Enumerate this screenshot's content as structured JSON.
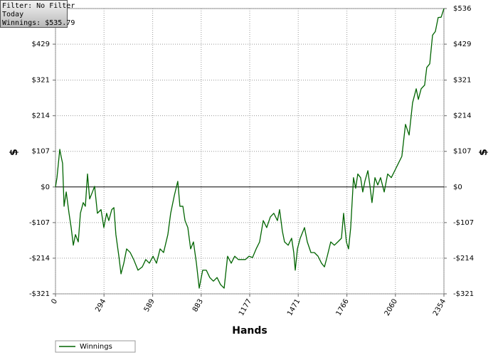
{
  "chart_data": {
    "type": "line",
    "info": [
      "Filter: No Filter",
      "Today",
      "Winnings: $535.79"
    ],
    "x_label": "Hands",
    "y_label": "$",
    "y2_label": "$",
    "grid": true,
    "legend": "bottom-left",
    "xlim": [
      0,
      2354
    ],
    "xticks": [
      0,
      294,
      589,
      883,
      1177,
      1471,
      1766,
      2060,
      2354
    ],
    "ylim": [
      -321,
      536
    ],
    "yticks": [
      {
        "value": -321,
        "label": "-$321"
      },
      {
        "value": -214,
        "label": "-$214"
      },
      {
        "value": -107,
        "label": "-$107"
      },
      {
        "value": 0,
        "label": "$0"
      },
      {
        "value": 107,
        "label": "$107"
      },
      {
        "value": 214,
        "label": "$214"
      },
      {
        "value": 321,
        "label": "$321"
      },
      {
        "value": 429,
        "label": "$429"
      },
      {
        "value": 536,
        "label": "$536"
      }
    ],
    "series": [
      {
        "name": "Winnings",
        "color": "#006400",
        "x": [
          0,
          9,
          26,
          34,
          43,
          52,
          65,
          82,
          95,
          108,
          121,
          138,
          151,
          168,
          181,
          194,
          207,
          224,
          237,
          254,
          276,
          293,
          310,
          323,
          341,
          354,
          366,
          384,
          397,
          414,
          431,
          453,
          474,
          500,
          526,
          547,
          569,
          591,
          612,
          634,
          655,
          681,
          698,
          720,
          741,
          754,
          772,
          785,
          802,
          819,
          836,
          854,
          871,
          892,
          914,
          935,
          957,
          979,
          1000,
          1022,
          1043,
          1065,
          1086,
          1108,
          1129,
          1151,
          1173,
          1194,
          1216,
          1237,
          1259,
          1280,
          1302,
          1323,
          1345,
          1358,
          1375,
          1388,
          1410,
          1431,
          1444,
          1453,
          1466,
          1483,
          1509,
          1526,
          1548,
          1569,
          1591,
          1612,
          1630,
          1647,
          1668,
          1690,
          1711,
          1733,
          1746,
          1763,
          1776,
          1789,
          1806,
          1819,
          1832,
          1849,
          1862,
          1875,
          1893,
          1905,
          1918,
          1936,
          1953,
          1970,
          1992,
          2013,
          2035,
          2056,
          2078,
          2099,
          2121,
          2143,
          2164,
          2186,
          2199,
          2216,
          2237,
          2250,
          2268,
          2285,
          2302,
          2319,
          2337,
          2354
        ],
        "values": [
          0,
          28,
          113,
          92,
          71,
          -58,
          -15,
          -79,
          -122,
          -175,
          -143,
          -165,
          -79,
          -47,
          -58,
          39,
          -36,
          -15,
          2,
          -79,
          -68,
          -122,
          -79,
          -101,
          -68,
          -62,
          -143,
          -208,
          -261,
          -229,
          -186,
          -197,
          -218,
          -250,
          -240,
          -218,
          -229,
          -208,
          -229,
          -186,
          -197,
          -143,
          -79,
          -26,
          17,
          -58,
          -58,
          -101,
          -122,
          -186,
          -165,
          -229,
          -304,
          -250,
          -250,
          -272,
          -283,
          -272,
          -293,
          -304,
          -208,
          -229,
          -208,
          -218,
          -218,
          -218,
          -208,
          -212,
          -186,
          -165,
          -101,
          -122,
          -90,
          -79,
          -101,
          -68,
          -133,
          -165,
          -175,
          -154,
          -197,
          -250,
          -186,
          -154,
          -122,
          -165,
          -197,
          -197,
          -208,
          -229,
          -240,
          -208,
          -165,
          -175,
          -165,
          -154,
          -79,
          -165,
          -186,
          -122,
          28,
          -4,
          39,
          28,
          -15,
          17,
          49,
          6,
          -47,
          28,
          6,
          28,
          -15,
          39,
          28,
          49,
          71,
          92,
          188,
          156,
          253,
          295,
          263,
          295,
          306,
          359,
          370,
          456,
          467,
          509,
          510,
          535.79
        ]
      }
    ]
  }
}
